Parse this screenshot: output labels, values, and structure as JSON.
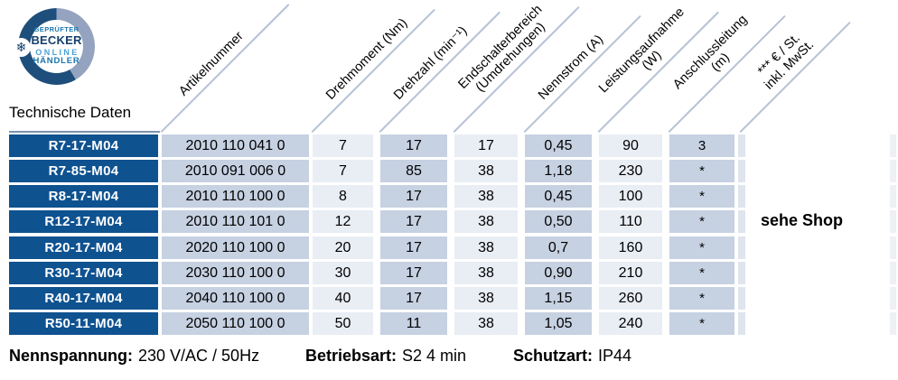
{
  "badge": {
    "top_text": "GEPRÜFTER",
    "brand": "BECKER",
    "middle": "ONLINE",
    "bottom_text": "HÄNDLER",
    "snowflake": "❄"
  },
  "title": "Technische Daten",
  "table": {
    "columns": [
      {
        "label": "Artikelnummer"
      },
      {
        "label": "Drehmoment (Nm)"
      },
      {
        "label": "Drehzahl (min⁻¹)"
      },
      {
        "label": "Endschalterbereich\n(Umdrehungen)"
      },
      {
        "label": "Nennstrom (A)"
      },
      {
        "label": "Leistungsaufnahme\n(W)"
      },
      {
        "label": "Anschlussleitung\n(m)"
      },
      {
        "label": "*** € / St.\ninkl. MwSt."
      }
    ],
    "rows": [
      {
        "model": "R7-17-M04",
        "artikelnummer": "2010 110 041 0",
        "drehmoment": "7",
        "drehzahl": "17",
        "endschalterbereich": "17",
        "nennstrom": "0,45",
        "leistungsaufnahme": "90",
        "anschlussleitung": "3"
      },
      {
        "model": "R7-85-M04",
        "artikelnummer": "2010 091 006 0",
        "drehmoment": "7",
        "drehzahl": "85",
        "endschalterbereich": "38",
        "nennstrom": "1,18",
        "leistungsaufnahme": "230",
        "anschlussleitung": "*"
      },
      {
        "model": "R8-17-M04",
        "artikelnummer": "2010 110 100 0",
        "drehmoment": "8",
        "drehzahl": "17",
        "endschalterbereich": "38",
        "nennstrom": "0,45",
        "leistungsaufnahme": "100",
        "anschlussleitung": "*"
      },
      {
        "model": "R12-17-M04",
        "artikelnummer": "2010 110 101 0",
        "drehmoment": "12",
        "drehzahl": "17",
        "endschalterbereich": "38",
        "nennstrom": "0,50",
        "leistungsaufnahme": "110",
        "anschlussleitung": "*"
      },
      {
        "model": "R20-17-M04",
        "artikelnummer": "2020 110 100 0",
        "drehmoment": "20",
        "drehzahl": "17",
        "endschalterbereich": "38",
        "nennstrom": "0,7",
        "leistungsaufnahme": "160",
        "anschlussleitung": "*"
      },
      {
        "model": "R30-17-M04",
        "artikelnummer": "2030 110 100 0",
        "drehmoment": "30",
        "drehzahl": "17",
        "endschalterbereich": "38",
        "nennstrom": "0,90",
        "leistungsaufnahme": "210",
        "anschlussleitung": "*"
      },
      {
        "model": "R40-17-M04",
        "artikelnummer": "2040 110 100 0",
        "drehmoment": "40",
        "drehzahl": "17",
        "endschalterbereich": "38",
        "nennstrom": "1,15",
        "leistungsaufnahme": "260",
        "anschlussleitung": "*"
      },
      {
        "model": "R50-11-M04",
        "artikelnummer": "2050 110 100 0",
        "drehmoment": "50",
        "drehzahl": "11",
        "endschalterbereich": "38",
        "nennstrom": "1,05",
        "leistungsaufnahme": "240",
        "anschlussleitung": "*"
      }
    ],
    "shop_note": "sehe Shop"
  },
  "footer": {
    "items": [
      {
        "label": "Nennspannung:",
        "value": "230 V/AC / 50Hz"
      },
      {
        "label": "Betriebsart:",
        "value": "S2 4 min"
      },
      {
        "label": "Schutzart:",
        "value": "IP44"
      }
    ]
  },
  "colors": {
    "name_cell": "#0f5290",
    "blue_cell": "#c6d1e2",
    "pale_cell": "#e9edf4",
    "ring_dark": "#1e4e7b",
    "ring_light": "#94a3bf",
    "header_line": "#b6c2d5"
  }
}
